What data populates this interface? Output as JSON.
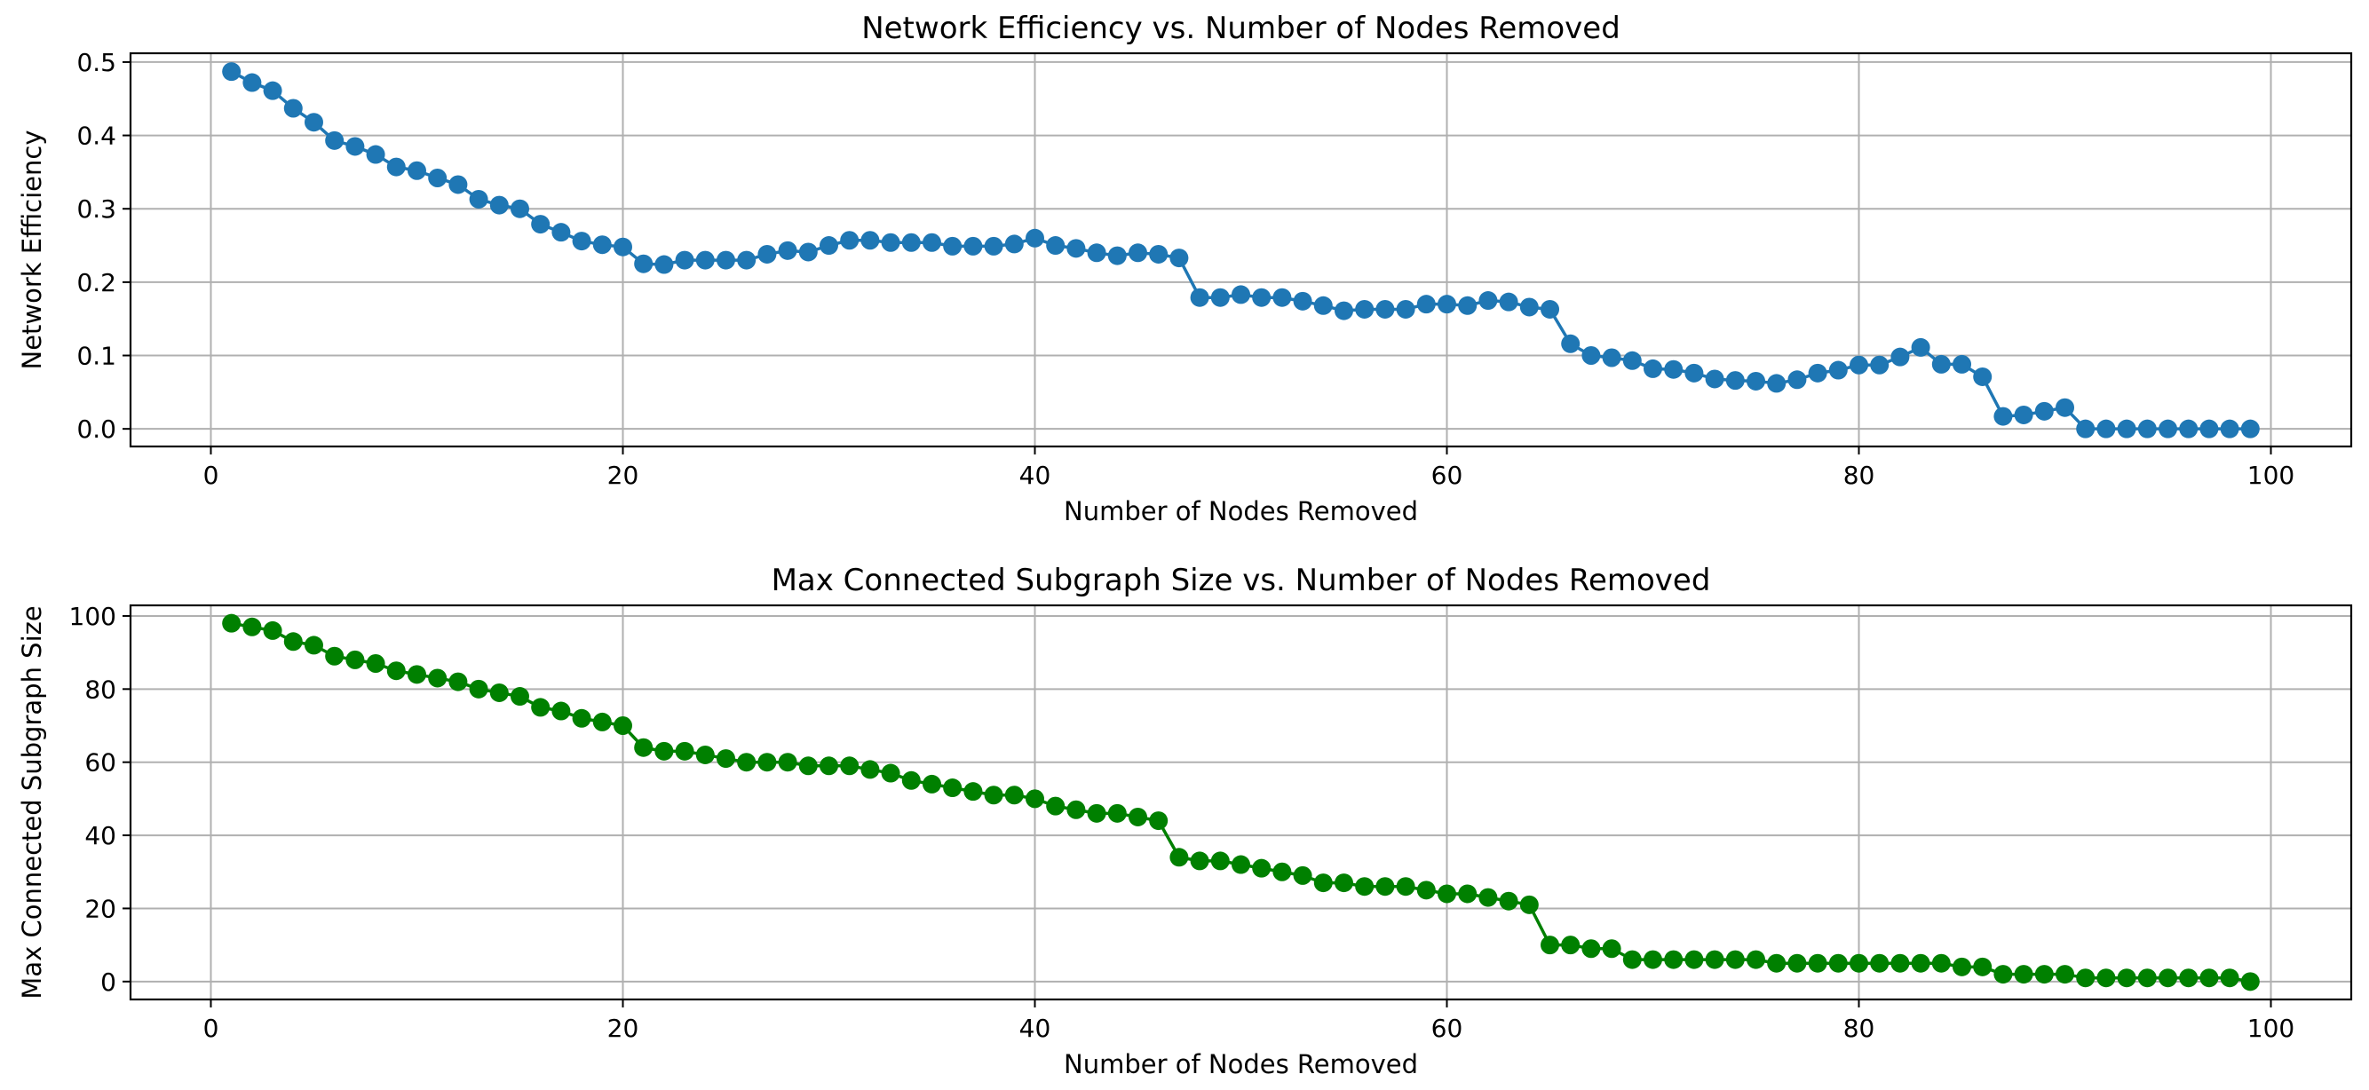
{
  "chart_data": [
    {
      "type": "line",
      "title": "Network Efficiency vs. Number of Nodes Removed",
      "xlabel": "Number of Nodes Removed",
      "ylabel": "Network Efficiency",
      "xlim": [
        -3.9,
        103.9
      ],
      "ylim": [
        -0.024,
        0.512
      ],
      "xticks": [
        0,
        20,
        40,
        60,
        80,
        100
      ],
      "yticks": [
        0.0,
        0.1,
        0.2,
        0.3,
        0.4,
        0.5
      ],
      "xtick_labels": [
        "0",
        "20",
        "40",
        "60",
        "80",
        "100"
      ],
      "ytick_labels": [
        "0.0",
        "0.1",
        "0.2",
        "0.3",
        "0.4",
        "0.5"
      ],
      "grid": true,
      "color": "#1f77b4",
      "marker": "circle",
      "series": [
        {
          "x": [
            1,
            2,
            3,
            4,
            5,
            6,
            7,
            8,
            9,
            10,
            11,
            12,
            13,
            14,
            15,
            16,
            17,
            18,
            19,
            20,
            21,
            22,
            23,
            24,
            25,
            26,
            27,
            28,
            29,
            30,
            31,
            32,
            33,
            34,
            35,
            36,
            37,
            38,
            39,
            40,
            41,
            42,
            43,
            44,
            45,
            46,
            47,
            48,
            49,
            50,
            51,
            52,
            53,
            54,
            55,
            56,
            57,
            58,
            59,
            60,
            61,
            62,
            63,
            64,
            65,
            66,
            67,
            68,
            69,
            70,
            71,
            72,
            73,
            74,
            75,
            76,
            77,
            78,
            79,
            80,
            81,
            82,
            83,
            84,
            85,
            86,
            87,
            88,
            89,
            90,
            91,
            92,
            93,
            94,
            95,
            96,
            97,
            98,
            99
          ],
          "values": [
            0.487,
            0.472,
            0.461,
            0.437,
            0.418,
            0.393,
            0.385,
            0.374,
            0.357,
            0.352,
            0.342,
            0.333,
            0.313,
            0.305,
            0.3,
            0.279,
            0.268,
            0.256,
            0.251,
            0.248,
            0.225,
            0.224,
            0.23,
            0.23,
            0.23,
            0.23,
            0.238,
            0.243,
            0.241,
            0.25,
            0.257,
            0.257,
            0.254,
            0.254,
            0.254,
            0.249,
            0.249,
            0.249,
            0.252,
            0.26,
            0.25,
            0.246,
            0.24,
            0.236,
            0.24,
            0.238,
            0.233,
            0.179,
            0.179,
            0.183,
            0.179,
            0.179,
            0.174,
            0.168,
            0.161,
            0.163,
            0.163,
            0.163,
            0.17,
            0.17,
            0.168,
            0.175,
            0.173,
            0.166,
            0.163,
            0.116,
            0.1,
            0.097,
            0.093,
            0.082,
            0.081,
            0.076,
            0.068,
            0.066,
            0.065,
            0.062,
            0.067,
            0.076,
            0.08,
            0.087,
            0.087,
            0.098,
            0.111,
            0.088,
            0.088,
            0.071,
            0.017,
            0.019,
            0.024,
            0.029,
            0.0,
            0.0,
            0.0,
            0.0,
            0.0,
            0.0,
            0.0,
            0.0,
            0.0
          ]
        }
      ]
    },
    {
      "type": "line",
      "title": "Max Connected Subgraph Size vs. Number of Nodes Removed",
      "xlabel": "Number of Nodes Removed",
      "ylabel": "Max Connected Subgraph Size",
      "xlim": [
        -3.9,
        103.9
      ],
      "ylim": [
        -4.9,
        102.9
      ],
      "xticks": [
        0,
        20,
        40,
        60,
        80,
        100
      ],
      "yticks": [
        0,
        20,
        40,
        60,
        80,
        100
      ],
      "xtick_labels": [
        "0",
        "20",
        "40",
        "60",
        "80",
        "100"
      ],
      "ytick_labels": [
        "0",
        "20",
        "40",
        "60",
        "80",
        "100"
      ],
      "grid": true,
      "color": "#008000",
      "marker": "circle",
      "series": [
        {
          "x": [
            1,
            2,
            3,
            4,
            5,
            6,
            7,
            8,
            9,
            10,
            11,
            12,
            13,
            14,
            15,
            16,
            17,
            18,
            19,
            20,
            21,
            22,
            23,
            24,
            25,
            26,
            27,
            28,
            29,
            30,
            31,
            32,
            33,
            34,
            35,
            36,
            37,
            38,
            39,
            40,
            41,
            42,
            43,
            44,
            45,
            46,
            47,
            48,
            49,
            50,
            51,
            52,
            53,
            54,
            55,
            56,
            57,
            58,
            59,
            60,
            61,
            62,
            63,
            64,
            65,
            66,
            67,
            68,
            69,
            70,
            71,
            72,
            73,
            74,
            75,
            76,
            77,
            78,
            79,
            80,
            81,
            82,
            83,
            84,
            85,
            86,
            87,
            88,
            89,
            90,
            91,
            92,
            93,
            94,
            95,
            96,
            97,
            98,
            99
          ],
          "values": [
            98,
            97,
            96,
            93,
            92,
            89,
            88,
            87,
            85,
            84,
            83,
            82,
            80,
            79,
            78,
            75,
            74,
            72,
            71,
            70,
            64,
            63,
            63,
            62,
            61,
            60,
            60,
            60,
            59,
            59,
            59,
            58,
            57,
            55,
            54,
            53,
            52,
            51,
            51,
            50,
            48,
            47,
            46,
            46,
            45,
            44,
            34,
            33,
            33,
            32,
            31,
            30,
            29,
            27,
            27,
            26,
            26,
            26,
            25,
            24,
            24,
            23,
            22,
            21,
            10,
            10,
            9,
            9,
            6,
            6,
            6,
            6,
            6,
            6,
            6,
            5,
            5,
            5,
            5,
            5,
            5,
            5,
            5,
            5,
            4,
            4,
            2,
            2,
            2,
            2,
            1,
            1,
            1,
            1,
            1,
            1,
            1,
            1,
            0
          ]
        }
      ]
    }
  ]
}
